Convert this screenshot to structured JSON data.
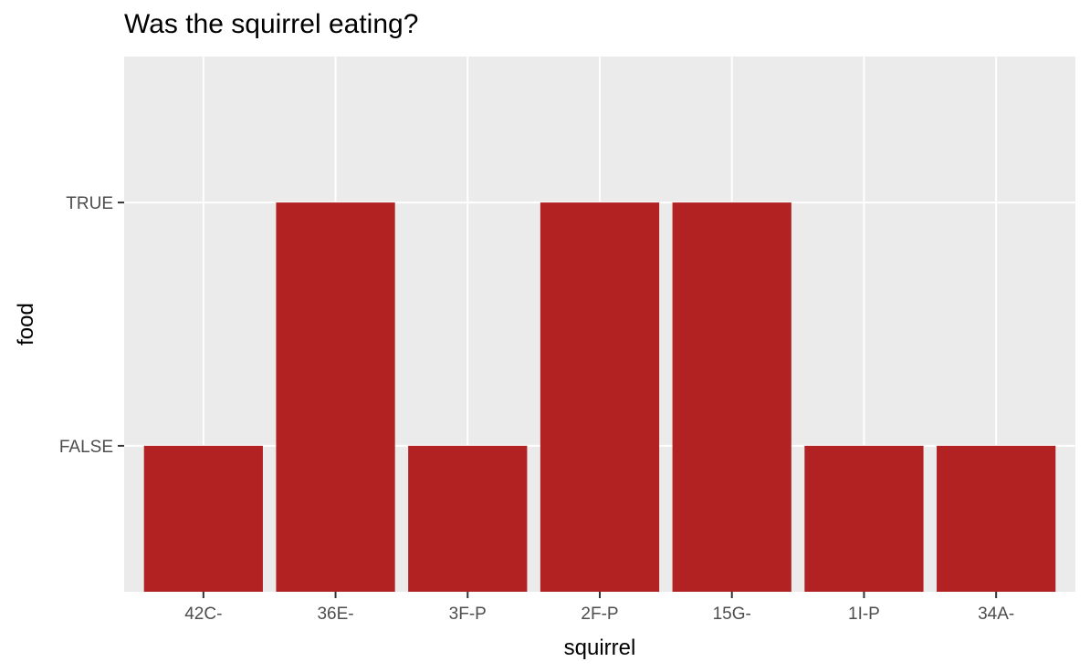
{
  "chart_data": {
    "type": "bar",
    "title": "Was the squirrel eating?",
    "xlabel": "squirrel",
    "ylabel": "food",
    "categories": [
      "42C-",
      "36E-",
      "3F-P",
      "2F-P",
      "15G-",
      "1I-P",
      "34A-"
    ],
    "values": [
      "FALSE",
      "TRUE",
      "FALSE",
      "TRUE",
      "TRUE",
      "FALSE",
      "FALSE"
    ],
    "y_levels": [
      "FALSE",
      "TRUE"
    ],
    "grid": true,
    "legend": "none",
    "colors": {
      "bar": "#b22222",
      "panel": "#ebebeb",
      "gridline": "#ffffff",
      "tick": "#333333"
    }
  }
}
